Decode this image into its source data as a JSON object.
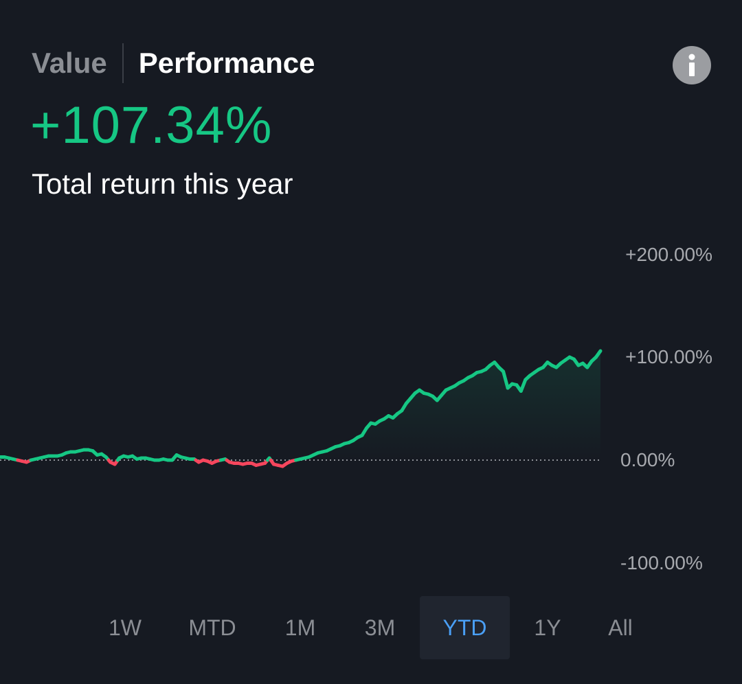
{
  "header": {
    "tabs": [
      {
        "label": "Value",
        "active": false
      },
      {
        "label": "Performance",
        "active": true
      }
    ],
    "info_icon": "info-icon"
  },
  "summary": {
    "return_value": "+107.34%",
    "caption": "Total return this year"
  },
  "colors": {
    "background": "#161a22",
    "positive": "#16c784",
    "negative": "#f6465d",
    "muted_text": "#8b8e94",
    "selected_range": "#4a9ff5"
  },
  "ranges": {
    "items": [
      "1W",
      "MTD",
      "1M",
      "3M",
      "YTD",
      "1Y",
      "All"
    ],
    "selected": "YTD"
  },
  "chart_data": {
    "type": "line",
    "title": "",
    "xlabel": "",
    "ylabel": "",
    "ylim": [
      -100,
      200
    ],
    "y_ticks": [
      "+200.00%",
      "+100.00%",
      "0.00%",
      "-100.00%"
    ],
    "baseline": 0,
    "baseline_style": "dotted",
    "colors_by_sign": {
      "positive": "#16c784",
      "negative": "#f6465d"
    },
    "series": [
      {
        "values": [
          3,
          3,
          2,
          1,
          0,
          -1,
          -2,
          0,
          1,
          2,
          3,
          4,
          4,
          4,
          5,
          7,
          8,
          8,
          9,
          10,
          10,
          9,
          5,
          6,
          3,
          -2,
          -4,
          2,
          4,
          3,
          4,
          1,
          2,
          2,
          1,
          0,
          0,
          1,
          0,
          0,
          5,
          3,
          2,
          1,
          1,
          -2,
          0,
          -1,
          -3,
          -1,
          0,
          1,
          -2,
          -3,
          -3,
          -4,
          -3,
          -3,
          -5,
          -4,
          -3,
          2,
          -4,
          -5,
          -6,
          -3,
          -1,
          0,
          1,
          2,
          3,
          5,
          7,
          8,
          9,
          11,
          13,
          14,
          16,
          17,
          19,
          22,
          24,
          31,
          36,
          35,
          38,
          40,
          43,
          41,
          45,
          48,
          55,
          60,
          65,
          68,
          65,
          64,
          62,
          58,
          63,
          68,
          70,
          72,
          75,
          77,
          80,
          82,
          85,
          86,
          88,
          92,
          95,
          90,
          86,
          70,
          74,
          73,
          67,
          78,
          82,
          85,
          88,
          90,
          95,
          92,
          90,
          94,
          97,
          100,
          98,
          92,
          94,
          90,
          96,
          100,
          106
        ]
      }
    ]
  }
}
